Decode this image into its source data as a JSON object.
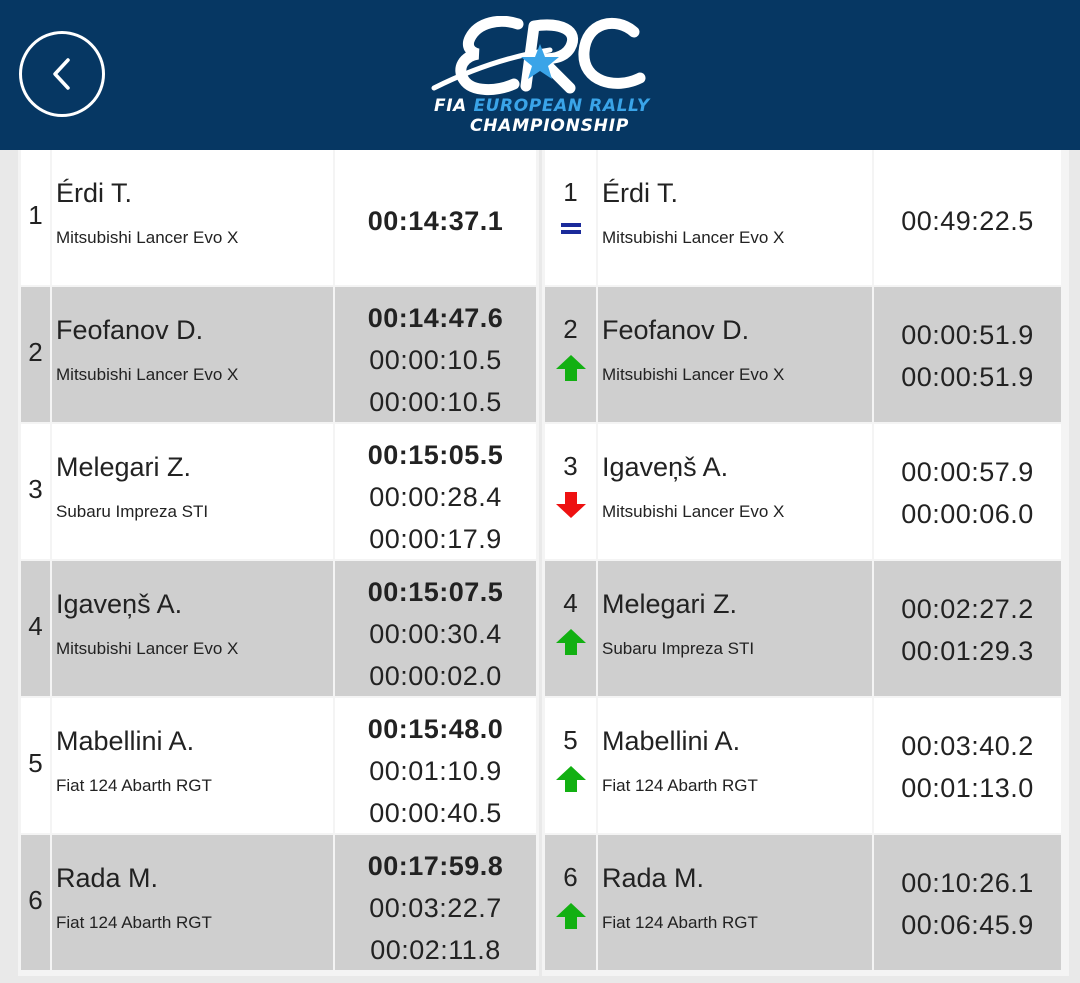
{
  "header": {
    "back_icon": "chevron-left-icon",
    "logo": {
      "mark": "ERC",
      "line1_prefix": "FIA",
      "line1_highlight": "EUROPEAN RALLY",
      "line2": "CHAMPIONSHIP"
    },
    "colors": {
      "bar": "#063763",
      "logo_blue": "#3aa4e8"
    }
  },
  "stage_results": [
    {
      "pos": "1",
      "driver": "Érdi T.",
      "car": "Mitsubishi Lancer Evo X",
      "time": "00:14:37.1"
    },
    {
      "pos": "2",
      "driver": "Feofanov D.",
      "car": "Mitsubishi Lancer Evo X",
      "time": "00:14:47.6",
      "gap_first": "00:00:10.5",
      "gap_prev": "00:00:10.5"
    },
    {
      "pos": "3",
      "driver": "Melegari Z.",
      "car": "Subaru Impreza STI",
      "time": "00:15:05.5",
      "gap_first": "00:00:28.4",
      "gap_prev": "00:00:17.9"
    },
    {
      "pos": "4",
      "driver": "Igaveņš A.",
      "car": "Mitsubishi Lancer Evo X",
      "time": "00:15:07.5",
      "gap_first": "00:00:30.4",
      "gap_prev": "00:00:02.0"
    },
    {
      "pos": "5",
      "driver": "Mabellini A.",
      "car": "Fiat 124 Abarth RGT",
      "time": "00:15:48.0",
      "gap_first": "00:01:10.9",
      "gap_prev": "00:00:40.5"
    },
    {
      "pos": "6",
      "driver": "Rada M.",
      "car": "Fiat 124 Abarth RGT",
      "time": "00:17:59.8",
      "gap_first": "00:03:22.7",
      "gap_prev": "00:02:11.8"
    }
  ],
  "overall_results": [
    {
      "pos": "1",
      "trend": "same",
      "trend_icon": "equal-icon",
      "driver": "Érdi T.",
      "car": "Mitsubishi Lancer Evo X",
      "time": "00:49:22.5"
    },
    {
      "pos": "2",
      "trend": "up",
      "trend_icon": "arrow-up-icon",
      "driver": "Feofanov D.",
      "car": "Mitsubishi Lancer Evo X",
      "gap_first": "00:00:51.9",
      "gap_prev": "00:00:51.9"
    },
    {
      "pos": "3",
      "trend": "down",
      "trend_icon": "arrow-down-icon",
      "driver": "Igaveņš A.",
      "car": "Mitsubishi Lancer Evo X",
      "gap_first": "00:00:57.9",
      "gap_prev": "00:00:06.0"
    },
    {
      "pos": "4",
      "trend": "up",
      "trend_icon": "arrow-up-icon",
      "driver": "Melegari Z.",
      "car": "Subaru Impreza STI",
      "gap_first": "00:02:27.2",
      "gap_prev": "00:01:29.3"
    },
    {
      "pos": "5",
      "trend": "up",
      "trend_icon": "arrow-up-icon",
      "driver": "Mabellini A.",
      "car": "Fiat 124 Abarth RGT",
      "gap_first": "00:03:40.2",
      "gap_prev": "00:01:13.0"
    },
    {
      "pos": "6",
      "trend": "up",
      "trend_icon": "arrow-up-icon",
      "driver": "Rada M.",
      "car": "Fiat 124 Abarth RGT",
      "gap_first": "00:10:26.1",
      "gap_prev": "00:06:45.9"
    }
  ],
  "colors": {
    "row_light": "#ffffff",
    "row_dark": "#cfcfcf",
    "trend_up": "#12b012",
    "trend_down": "#ee1111",
    "trend_same": "#1a2a9a"
  }
}
